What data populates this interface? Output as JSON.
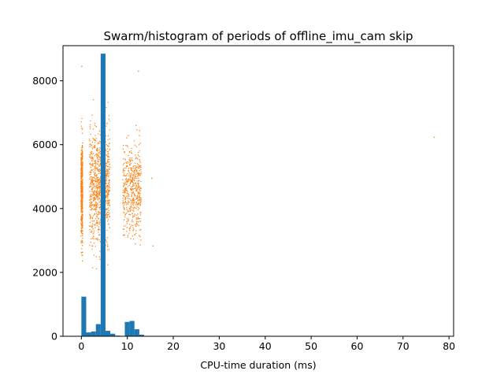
{
  "chart_data": {
    "type": "bar",
    "title": "Swarm/histogram of periods of offline_imu_cam skip",
    "xlabel": "CPU-time duration (ms)",
    "ylabel": "",
    "xlim": [
      -4.0,
      81.0
    ],
    "ylim": [
      0,
      9100
    ],
    "xticks": [
      0,
      10,
      20,
      30,
      40,
      50,
      60,
      70,
      80
    ],
    "yticks": [
      0,
      2000,
      4000,
      6000,
      8000
    ],
    "grid": false,
    "legend": "none",
    "bin_width": 1.05,
    "histogram": {
      "color": "#1f77b4",
      "bin_starts": [
        0.0,
        1.05,
        2.1,
        3.15,
        4.2,
        5.25,
        6.3,
        7.35,
        8.4,
        9.45,
        10.5,
        11.55,
        12.6,
        13.65
      ],
      "counts": [
        1240,
        120,
        150,
        380,
        8850,
        170,
        80,
        20,
        10,
        450,
        480,
        220,
        50,
        5
      ]
    },
    "swarm": {
      "color": "#ff7f0e",
      "clusters": [
        {
          "x_center": 0.1,
          "x_spread": 0.2,
          "y_mean": 4600,
          "y_sd": 800,
          "y_min": 1850,
          "y_max": 7300,
          "count": 420
        },
        {
          "x_center": 4.0,
          "x_spread": 2.2,
          "y_mean": 4700,
          "y_sd": 900,
          "y_min": 2000,
          "y_max": 7800,
          "count": 950
        },
        {
          "x_center": 11.0,
          "x_spread": 2.0,
          "y_mean": 4600,
          "y_sd": 700,
          "y_min": 2400,
          "y_max": 6600,
          "count": 520
        }
      ],
      "outliers": [
        {
          "x": 0.1,
          "y": 8450
        },
        {
          "x": 12.4,
          "y": 8300
        },
        {
          "x": 76.8,
          "y": 6230
        },
        {
          "x": 15.6,
          "y": 2830
        },
        {
          "x": 15.3,
          "y": 4950
        }
      ]
    }
  }
}
